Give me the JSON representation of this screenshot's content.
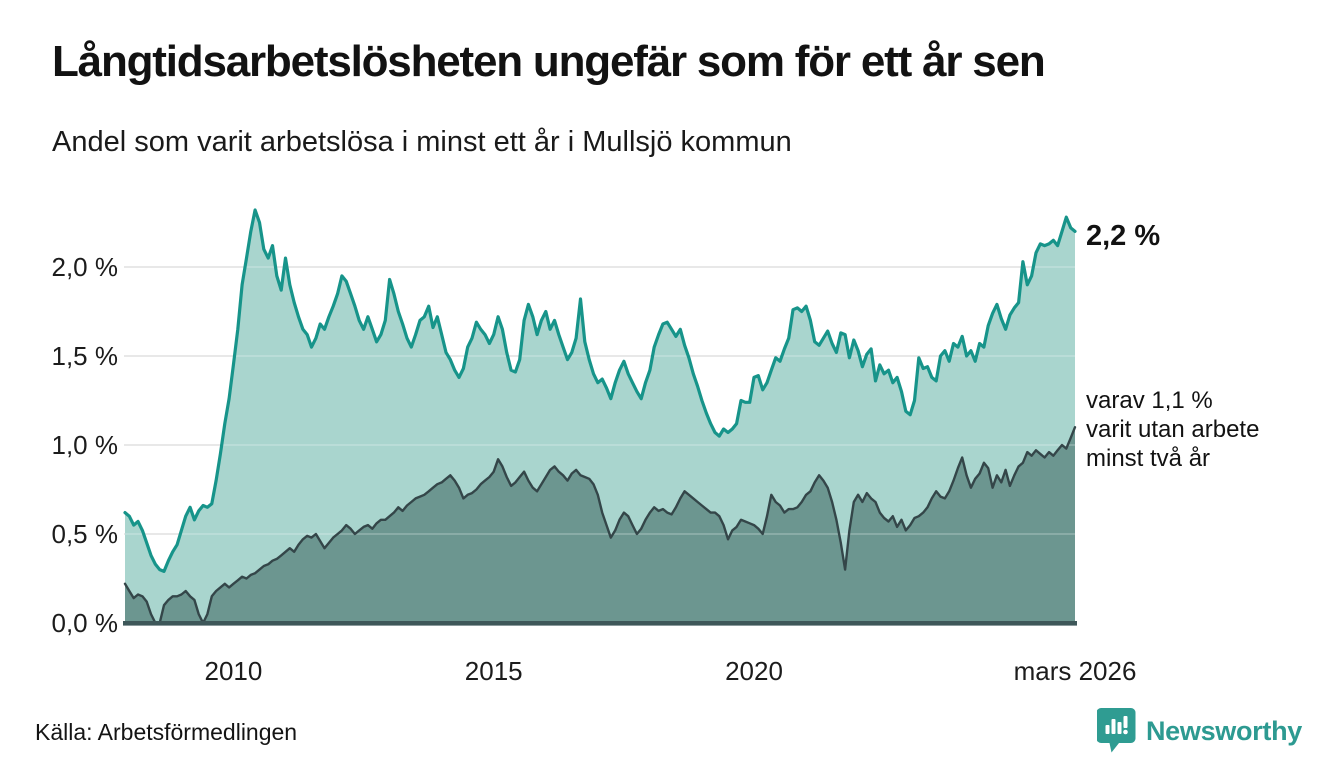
{
  "header": {
    "title": "Långtidsarbetslösheten ungefär som för ett år sen",
    "subtitle": "Andel som varit arbetslösa i minst ett år i Mullsjö kommun"
  },
  "annotations": {
    "latest_total": "2,2 %",
    "two_year_line1": "varav 1,1 %",
    "two_year_line2": "varit utan arbete",
    "two_year_line3": "minst två år"
  },
  "footer": {
    "source": "Källa: Arbetsförmedlingen",
    "brand": "Newsworthy"
  },
  "colors": {
    "total_line": "#17948a",
    "total_fill": "#a9d5ce",
    "two_year_fill": "#6c9690",
    "two_year_line": "#344649",
    "axis_line": "#3e5759",
    "gridline": "#d8d8d8",
    "grid_overlay": "rgba(255,255,255,0.28)",
    "text": "#1a1a1a",
    "brand_teal": "#2d9a91"
  },
  "chart_data": {
    "type": "area",
    "title": "Långtidsarbetslösheten ungefär som för ett år sen",
    "subtitle": "Andel som varit arbetslösa i minst ett år i Mullsjö kommun",
    "interval": "monthly",
    "points_per_year": 12,
    "grid": true,
    "legend_position": "direct-labels-right",
    "ylim": [
      0,
      2.45
    ],
    "y_axis": {
      "ticks": [
        {
          "value": 2.0,
          "label": "2,0 %"
        },
        {
          "value": 1.5,
          "label": "1,5 %"
        },
        {
          "value": 1.0,
          "label": "1,0 %"
        },
        {
          "value": 0.5,
          "label": "0,5 %"
        },
        {
          "value": 0.0,
          "label": "0,0 %"
        }
      ]
    },
    "x_axis": {
      "ticks": [
        {
          "month_index": 25,
          "label": "2010"
        },
        {
          "month_index": 85,
          "label": "2015"
        },
        {
          "month_index": 145,
          "label": "2020"
        },
        {
          "month_index": 219,
          "label": "mars 2026"
        }
      ]
    },
    "series": [
      {
        "name": "Arbetslösa minst ett år",
        "end_value_label": "2,2 %",
        "line_color": "#17948a",
        "fill_color": "#a9d5ce",
        "values": [
          0.62,
          0.6,
          0.55,
          0.57,
          0.52,
          0.45,
          0.38,
          0.33,
          0.3,
          0.29,
          0.35,
          0.4,
          0.44,
          0.52,
          0.6,
          0.65,
          0.58,
          0.63,
          0.66,
          0.65,
          0.67,
          0.8,
          0.95,
          1.12,
          1.26,
          1.45,
          1.65,
          1.9,
          2.05,
          2.2,
          2.32,
          2.25,
          2.1,
          2.05,
          2.12,
          1.95,
          1.87,
          2.05,
          1.9,
          1.8,
          1.72,
          1.65,
          1.62,
          1.55,
          1.6,
          1.68,
          1.65,
          1.72,
          1.78,
          1.85,
          1.95,
          1.92,
          1.85,
          1.78,
          1.7,
          1.65,
          1.72,
          1.65,
          1.58,
          1.62,
          1.7,
          1.93,
          1.85,
          1.75,
          1.68,
          1.6,
          1.55,
          1.62,
          1.7,
          1.72,
          1.78,
          1.66,
          1.72,
          1.62,
          1.52,
          1.48,
          1.42,
          1.38,
          1.43,
          1.55,
          1.6,
          1.69,
          1.65,
          1.62,
          1.57,
          1.62,
          1.72,
          1.65,
          1.52,
          1.42,
          1.41,
          1.48,
          1.7,
          1.79,
          1.72,
          1.62,
          1.7,
          1.75,
          1.65,
          1.7,
          1.62,
          1.55,
          1.48,
          1.52,
          1.6,
          1.82,
          1.58,
          1.48,
          1.4,
          1.35,
          1.37,
          1.32,
          1.26,
          1.35,
          1.42,
          1.47,
          1.4,
          1.35,
          1.3,
          1.26,
          1.35,
          1.42,
          1.55,
          1.62,
          1.68,
          1.69,
          1.65,
          1.61,
          1.65,
          1.56,
          1.49,
          1.4,
          1.33,
          1.25,
          1.18,
          1.12,
          1.07,
          1.05,
          1.09,
          1.07,
          1.09,
          1.12,
          1.25,
          1.24,
          1.24,
          1.38,
          1.39,
          1.31,
          1.35,
          1.42,
          1.49,
          1.47,
          1.54,
          1.6,
          1.76,
          1.77,
          1.75,
          1.78,
          1.7,
          1.58,
          1.56,
          1.6,
          1.64,
          1.57,
          1.52,
          1.63,
          1.62,
          1.49,
          1.59,
          1.53,
          1.44,
          1.51,
          1.54,
          1.36,
          1.45,
          1.4,
          1.42,
          1.35,
          1.38,
          1.3,
          1.19,
          1.17,
          1.25,
          1.49,
          1.43,
          1.44,
          1.38,
          1.36,
          1.5,
          1.53,
          1.47,
          1.57,
          1.55,
          1.61,
          1.5,
          1.53,
          1.47,
          1.57,
          1.55,
          1.67,
          1.74,
          1.79,
          1.71,
          1.65,
          1.73,
          1.77,
          1.8,
          2.03,
          1.9,
          1.95,
          2.08,
          2.13,
          2.12,
          2.13,
          2.15,
          2.12,
          2.2,
          2.28,
          2.22,
          2.2
        ]
      },
      {
        "name": "varav arbetslösa minst två år",
        "end_value_label": "varav 1,1 % varit utan arbete minst två år",
        "line_color": "#344649",
        "fill_color": "#6c9690",
        "values": [
          0.22,
          0.18,
          0.14,
          0.16,
          0.15,
          0.12,
          0.05,
          0.0,
          0.0,
          0.1,
          0.13,
          0.15,
          0.15,
          0.16,
          0.18,
          0.15,
          0.13,
          0.05,
          0.0,
          0.05,
          0.15,
          0.18,
          0.2,
          0.22,
          0.2,
          0.22,
          0.24,
          0.26,
          0.25,
          0.27,
          0.28,
          0.3,
          0.32,
          0.33,
          0.35,
          0.36,
          0.38,
          0.4,
          0.42,
          0.4,
          0.44,
          0.47,
          0.49,
          0.48,
          0.5,
          0.46,
          0.42,
          0.45,
          0.48,
          0.5,
          0.52,
          0.55,
          0.53,
          0.5,
          0.52,
          0.54,
          0.55,
          0.53,
          0.56,
          0.58,
          0.58,
          0.6,
          0.62,
          0.65,
          0.63,
          0.66,
          0.68,
          0.7,
          0.71,
          0.72,
          0.74,
          0.76,
          0.78,
          0.79,
          0.81,
          0.83,
          0.8,
          0.76,
          0.7,
          0.72,
          0.73,
          0.75,
          0.78,
          0.8,
          0.82,
          0.85,
          0.92,
          0.88,
          0.82,
          0.77,
          0.79,
          0.82,
          0.85,
          0.8,
          0.76,
          0.74,
          0.78,
          0.82,
          0.86,
          0.88,
          0.85,
          0.83,
          0.8,
          0.84,
          0.86,
          0.83,
          0.82,
          0.81,
          0.78,
          0.72,
          0.62,
          0.55,
          0.48,
          0.52,
          0.58,
          0.62,
          0.6,
          0.55,
          0.5,
          0.53,
          0.58,
          0.62,
          0.65,
          0.63,
          0.64,
          0.62,
          0.61,
          0.65,
          0.7,
          0.74,
          0.72,
          0.7,
          0.68,
          0.66,
          0.64,
          0.62,
          0.62,
          0.6,
          0.55,
          0.47,
          0.52,
          0.54,
          0.58,
          0.57,
          0.56,
          0.55,
          0.53,
          0.5,
          0.6,
          0.72,
          0.68,
          0.66,
          0.62,
          0.64,
          0.64,
          0.65,
          0.68,
          0.72,
          0.74,
          0.79,
          0.83,
          0.8,
          0.76,
          0.68,
          0.58,
          0.45,
          0.3,
          0.52,
          0.68,
          0.72,
          0.68,
          0.73,
          0.7,
          0.68,
          0.62,
          0.59,
          0.57,
          0.6,
          0.54,
          0.58,
          0.52,
          0.55,
          0.59,
          0.6,
          0.62,
          0.65,
          0.7,
          0.74,
          0.71,
          0.7,
          0.74,
          0.8,
          0.87,
          0.93,
          0.83,
          0.76,
          0.81,
          0.84,
          0.9,
          0.87,
          0.76,
          0.83,
          0.79,
          0.86,
          0.77,
          0.83,
          0.88,
          0.9,
          0.96,
          0.94,
          0.97,
          0.95,
          0.93,
          0.96,
          0.94,
          0.97,
          1.0,
          0.98,
          1.04,
          1.1
        ]
      }
    ]
  }
}
